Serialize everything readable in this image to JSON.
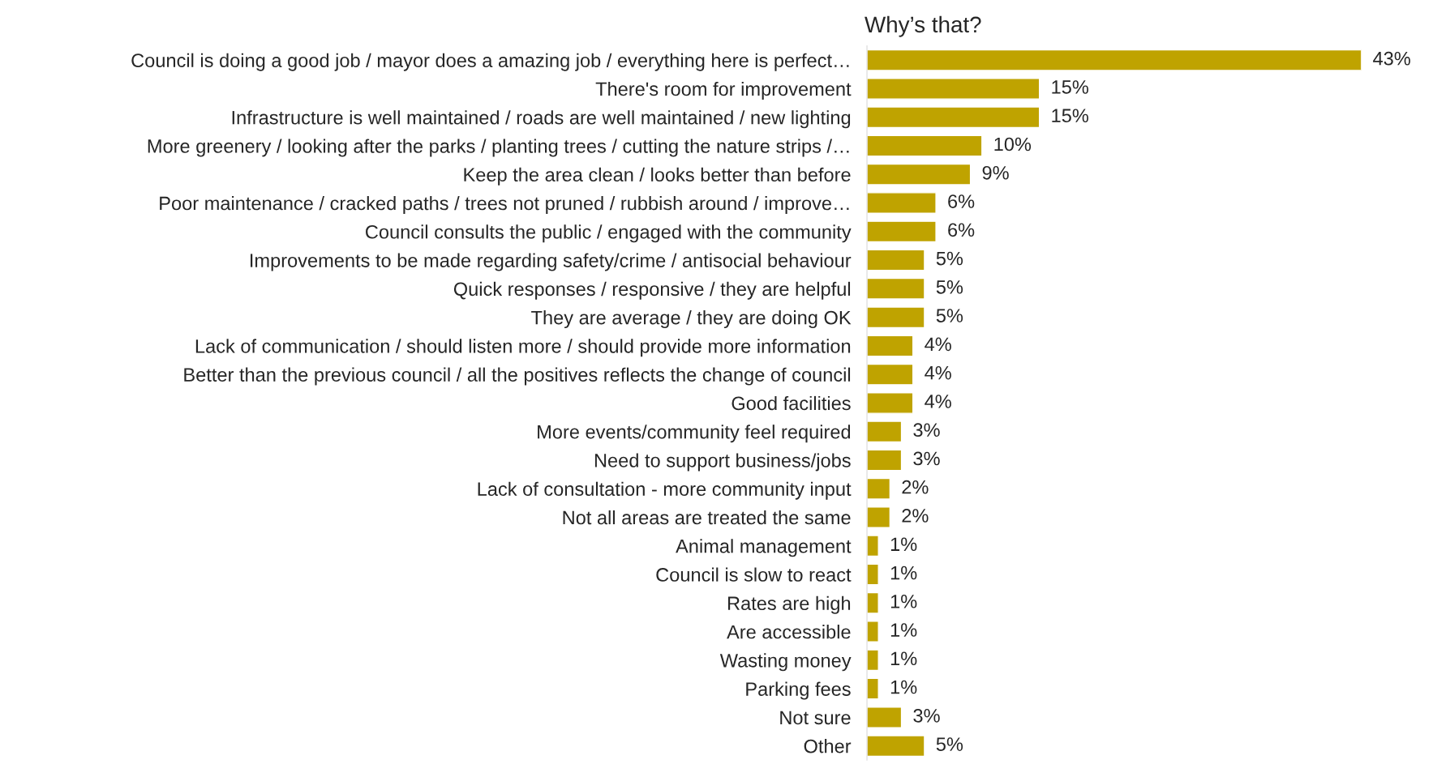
{
  "chart_data": {
    "type": "bar",
    "orientation": "horizontal",
    "title": "Why’s that?",
    "categories": [
      "Council is doing a good job / mayor does a amazing job / everything here is perfect…",
      "There's room for improvement",
      "Infrastructure is well maintained / roads are well maintained / new lighting",
      "More greenery / looking after the parks / planting trees / cutting the nature strips /…",
      "Keep the area clean / looks better than before",
      "Poor maintenance / cracked paths / trees not pruned / rubbish around / improve…",
      "Council consults the public / engaged with the community",
      "Improvements to be made regarding safety/crime / antisocial behaviour",
      "Quick responses / responsive / they are helpful",
      "They are average / they are doing OK",
      "Lack of communication / should listen more / should provide more information",
      "Better than the previous council / all the positives reflects the change of council",
      "Good facilities",
      "More events/community feel required",
      "Need to support business/jobs",
      "Lack of consultation - more community input",
      "Not all areas are treated the same",
      "Animal management",
      "Council is slow to react",
      "Rates are high",
      "Are accessible",
      "Wasting money",
      "Parking fees",
      "Not sure",
      "Other"
    ],
    "values": [
      43,
      15,
      15,
      10,
      9,
      6,
      6,
      5,
      5,
      5,
      4,
      4,
      4,
      3,
      3,
      2,
      2,
      1,
      1,
      1,
      1,
      1,
      1,
      3,
      5
    ],
    "value_labels": [
      "43%",
      "15%",
      "15%",
      "10%",
      "9%",
      "6%",
      "6%",
      "5%",
      "5%",
      "5%",
      "4%",
      "4%",
      "4%",
      "3%",
      "3%",
      "2%",
      "2%",
      "1%",
      "1%",
      "1%",
      "1%",
      "1%",
      "1%",
      "3%",
      "5%"
    ],
    "color": "#bfa300",
    "tick_labels": "y",
    "grid": false,
    "legend": false
  }
}
